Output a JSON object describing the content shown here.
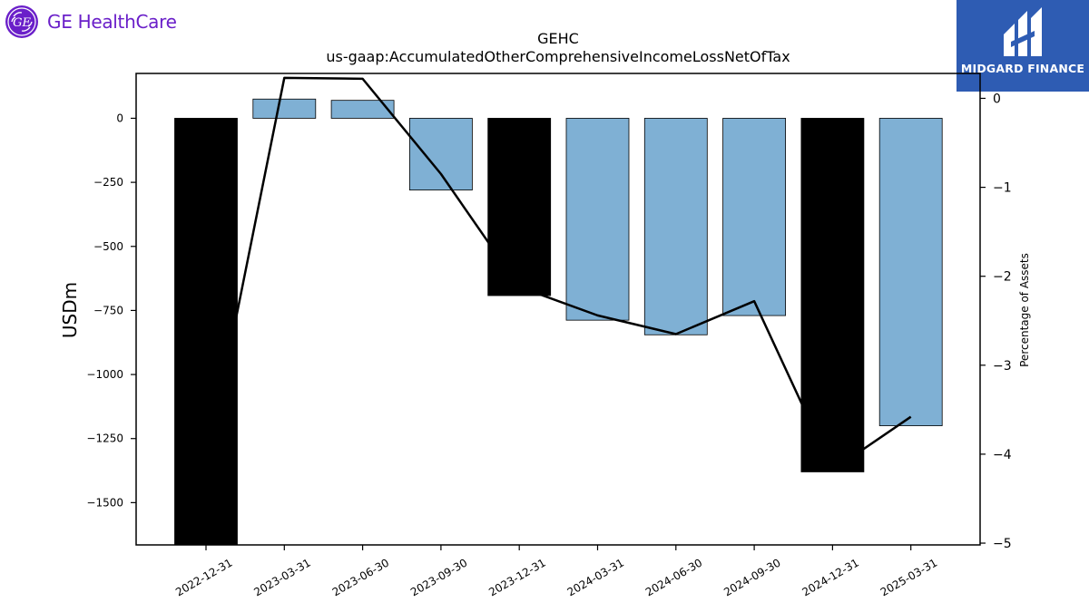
{
  "brand": {
    "company_logo_text": "GE HealthCare",
    "company_logo_glyph": "GE",
    "watermark_text": "MIDGARD FINANCE",
    "company_color": "#6a1fc9",
    "watermark_color": "#2e5cb3"
  },
  "chart_data": {
    "type": "bar",
    "title": "GEHC",
    "subtitle": "us-gaap:AccumulatedOtherComprehensiveIncomeLossNetOfTax",
    "ylabel": "USDm",
    "y2label": "Percentage of Assets",
    "categories": [
      "2022-12-31",
      "2023-03-31",
      "2023-06-30",
      "2023-09-30",
      "2023-12-31",
      "2024-03-31",
      "2024-06-30",
      "2024-09-30",
      "2024-12-31",
      "2025-03-31"
    ],
    "series": [
      {
        "values": [
          -1665,
          75,
          70,
          -280,
          -692,
          -788,
          -845,
          -770,
          -1380,
          -1200
        ],
        "bar_colors": [
          "#000000",
          "#7fb0d4",
          "#7fb0d4",
          "#7fb0d4",
          "#000000",
          "#7fb0d4",
          "#7fb0d4",
          "#7fb0d4",
          "#000000",
          "#7fb0d4"
        ]
      },
      {
        "axis": "right",
        "values": [
          -4.15,
          0.23,
          0.22,
          -0.85,
          -2.12,
          -2.44,
          -2.65,
          -2.28,
          -4.18,
          -3.58
        ],
        "color": "#000000"
      }
    ],
    "ylim": [
      -1665,
      175
    ],
    "y2lim": [
      -5.02,
      0.28
    ],
    "yticks": [
      0,
      -250,
      -500,
      -750,
      -1000,
      -1250,
      -1500
    ],
    "y2ticks": [
      0,
      -1,
      -2,
      -3,
      -4,
      -5
    ],
    "grid": false,
    "legend": "none"
  }
}
